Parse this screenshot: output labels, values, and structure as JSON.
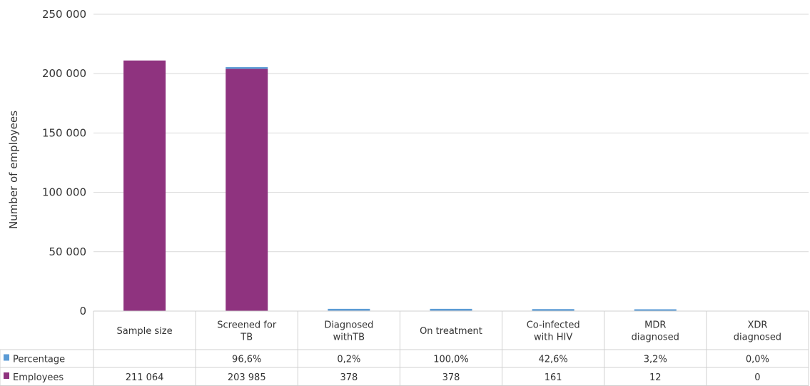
{
  "chart_data": {
    "type": "bar",
    "stacked": true,
    "ylabel": "Number of employees",
    "xlabel": "",
    "ylim": [
      0,
      250000
    ],
    "y_ticks": [
      0,
      50000,
      100000,
      150000,
      200000,
      250000
    ],
    "y_tick_labels": [
      "0",
      "50 000",
      "100 000",
      "150 000",
      "200 000",
      "250 000"
    ],
    "grid": true,
    "legend_placement": "data table rows (left)",
    "categories": [
      [
        "Sample size"
      ],
      [
        "Screened for",
        "TB"
      ],
      [
        "Diagnosed",
        "withTB"
      ],
      [
        "On treatment"
      ],
      [
        "Co-infected",
        "with HIV"
      ],
      [
        "MDR",
        "diagnosed"
      ],
      [
        "XDR",
        "diagnosed"
      ]
    ],
    "series": [
      {
        "name": "Employees",
        "color": "#8f337f",
        "values": [
          211064,
          203985,
          378,
          378,
          161,
          12,
          0
        ],
        "labels": [
          "211 064",
          "203 985",
          "378",
          "378",
          "161",
          "12",
          "0"
        ]
      },
      {
        "name": "Percentage",
        "color": "#5b9bd5",
        "values": [
          null,
          96.6,
          0.2,
          100.0,
          42.6,
          3.2,
          0.0
        ],
        "labels": [
          "",
          "96,6%",
          "0,2%",
          "100,0%",
          "42,6%",
          "3,2%",
          "0,0%"
        ],
        "plotted_as": "percentage x 10"
      }
    ]
  }
}
